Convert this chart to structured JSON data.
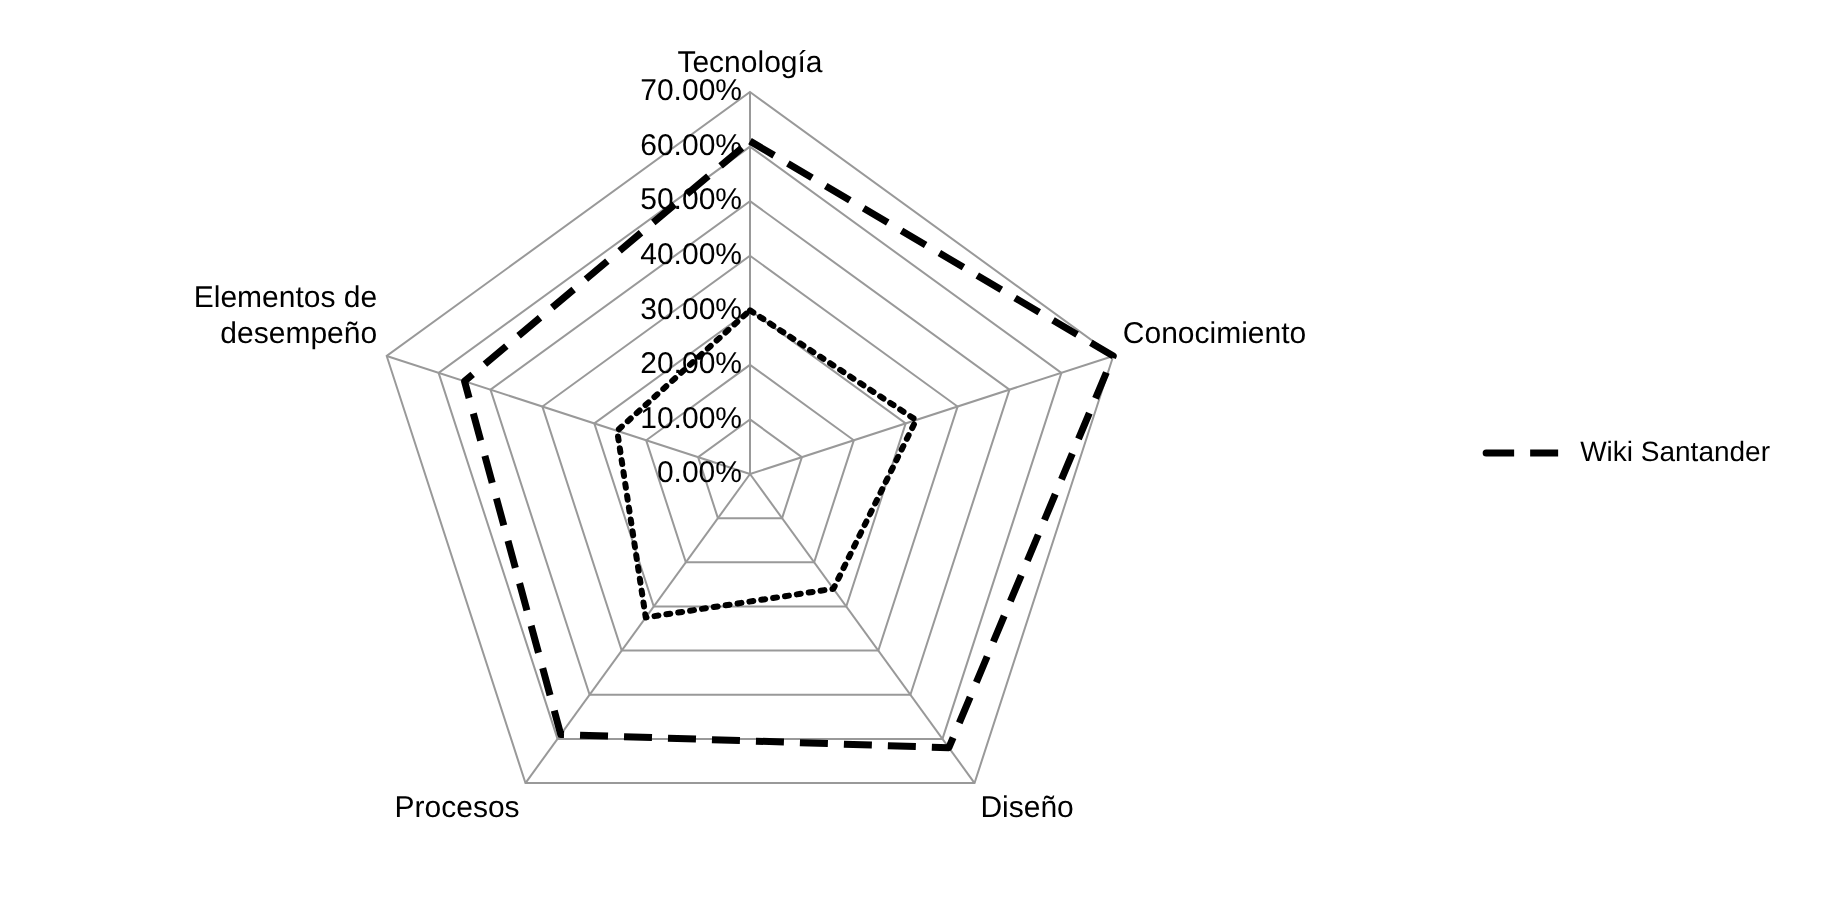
{
  "chart_data": {
    "type": "radar",
    "categories": [
      "Tecnología",
      "Conocimiento",
      "Diseño",
      "Procesos",
      "Elementos de desempeño"
    ],
    "series": [
      {
        "name": "Wiki Santander",
        "color": "#000000",
        "line_style": "dashed",
        "values": [
          61,
          70,
          62,
          59,
          55
        ]
      },
      {
        "color": "#000000",
        "line_style": "dotted",
        "values": [
          30,
          32,
          26,
          32.5,
          25.6
        ]
      }
    ],
    "ylim": [
      0,
      70
    ],
    "yticks": [
      {
        "value": 0,
        "label": "0.00%"
      },
      {
        "value": 10,
        "label": "10.00%"
      },
      {
        "value": 20,
        "label": "20.00%"
      },
      {
        "value": 30,
        "label": "30.00%"
      },
      {
        "value": 40,
        "label": "40.00%"
      },
      {
        "value": 50,
        "label": "50.00%"
      },
      {
        "value": 60,
        "label": "60.00%"
      },
      {
        "value": 70,
        "label": "70.00%"
      }
    ],
    "grid": true,
    "legend": "right",
    "marker": "none"
  }
}
